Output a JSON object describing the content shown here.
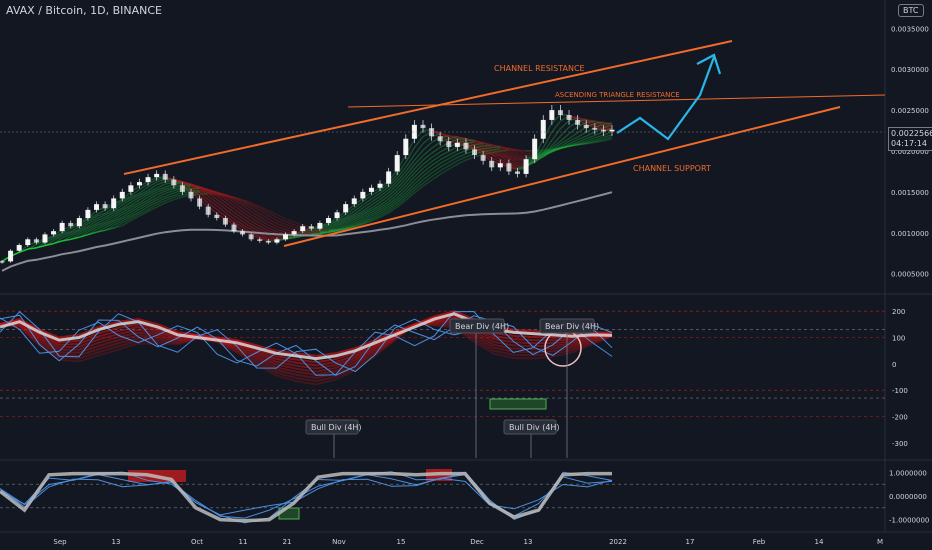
{
  "header": {
    "symbol_title": "AVAX / Bitcoin, 1D, BINANCE",
    "currency_badge": "BTC"
  },
  "price_tag": {
    "price": "0.0022566",
    "countdown": "04:17:14"
  },
  "colors": {
    "background": "#131722",
    "resistance": "#f26b2a",
    "support": "#f26b2a",
    "projection": "#29b6e8",
    "bull_ribbon": "#1fae3a",
    "bear_ribbon": "#b71c1c",
    "candle_bull": "#ffffff",
    "candle_bear": "#ffffff",
    "axis_text": "#d1d4dc"
  },
  "annotations": {
    "channel_resistance": "CHANNEL RESISTANCE",
    "ascending_triangle": "ASCENDING TRIANGLE RESISTANCE",
    "channel_support": "CHANNEL SUPPORT",
    "bear_div_1": "Bear Div (4H)",
    "bear_div_2": "Bear Div (4H)",
    "bull_div_1": "Bull Div (4H)",
    "bull_div_2": "Bull Div (4H)"
  },
  "chart_data": [
    {
      "type": "line",
      "pane": "price",
      "y_ticks": [
        "0.0035000",
        "0.0030000",
        "0.0025000",
        "0.0020000",
        "0.0015000",
        "0.0010000",
        "0.0005000"
      ],
      "ylim": [
        0.0003,
        0.0037
      ],
      "close": [
        0.00065,
        0.00078,
        0.00085,
        0.00092,
        0.00088,
        0.00098,
        0.00102,
        0.00112,
        0.00108,
        0.00118,
        0.00128,
        0.00135,
        0.0013,
        0.00142,
        0.0015,
        0.00158,
        0.00162,
        0.00168,
        0.00172,
        0.00165,
        0.00158,
        0.0015,
        0.00142,
        0.00132,
        0.00122,
        0.00118,
        0.0011,
        0.00102,
        0.00098,
        0.00092,
        0.0009,
        0.00088,
        0.00092,
        0.00098,
        0.00102,
        0.00108,
        0.00105,
        0.00112,
        0.00118,
        0.00125,
        0.00135,
        0.00142,
        0.0015,
        0.00155,
        0.0016,
        0.00175,
        0.00195,
        0.00215,
        0.00232,
        0.00228,
        0.00218,
        0.00212,
        0.00205,
        0.0021,
        0.00202,
        0.00195,
        0.00188,
        0.0018,
        0.00185,
        0.00175,
        0.00172,
        0.0019,
        0.00215,
        0.00238,
        0.0025,
        0.00244,
        0.00238,
        0.00232,
        0.00228,
        0.00226,
        0.00224,
        0.00226
      ],
      "channel_resistance_line": [
        [
          0.00175,
          0
        ],
        [
          0.00328,
          1
        ]
      ],
      "triangle_resistance_level": 0.00255,
      "channel_support_line": [
        [
          0.00088,
          0
        ],
        [
          0.00245,
          1
        ]
      ]
    },
    {
      "type": "line",
      "pane": "oscillator_1",
      "y_ticks": [
        "200",
        "100",
        "0",
        "-100",
        "-200",
        "-300"
      ],
      "ylim": [
        -350,
        250
      ],
      "series": [
        {
          "values": [
            140,
            160,
            120,
            90,
            100,
            130,
            150,
            160,
            140,
            110,
            100,
            90,
            80,
            60,
            40,
            30,
            20,
            30,
            50,
            80,
            110,
            140,
            170,
            190,
            160,
            130,
            120,
            115,
            110,
            105,
            110,
            108
          ]
        }
      ]
    },
    {
      "type": "line",
      "pane": "oscillator_2",
      "y_ticks": [
        "1.0000000",
        "0.0000000",
        "-1.0000000"
      ],
      "ylim": [
        -1.4,
        1.4
      ],
      "series": [
        {
          "values": [
            0.2,
            -0.6,
            0.9,
            0.95,
            0.95,
            0.95,
            0.9,
            0.7,
            -0.5,
            -1.0,
            -1.05,
            -1.0,
            -0.3,
            0.8,
            0.95,
            0.95,
            0.95,
            0.9,
            0.95,
            0.95,
            -0.3,
            -0.9,
            -0.6,
            0.9,
            0.95,
            0.95
          ]
        }
      ]
    }
  ],
  "x_axis": {
    "labels": [
      "Sep",
      "13",
      "Oct",
      "11",
      "21",
      "Nov",
      "15",
      "Dec",
      "13",
      "2022",
      "17",
      "Feb",
      "14",
      "M"
    ]
  }
}
